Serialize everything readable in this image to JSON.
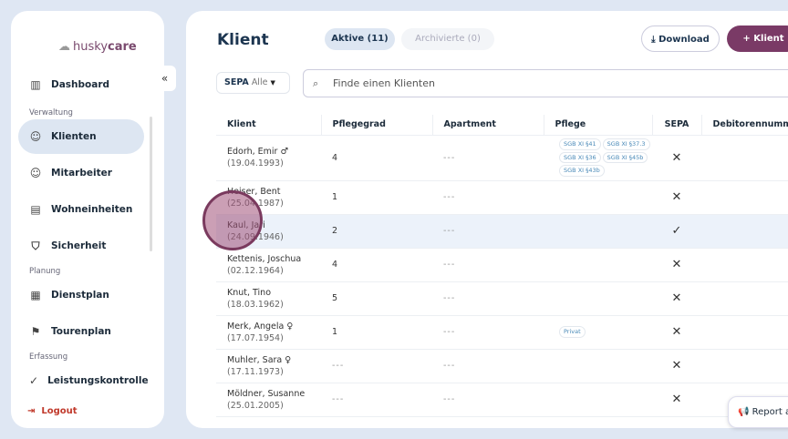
{
  "brand": {
    "name_a": "husky",
    "name_b": "care"
  },
  "sidebar": {
    "collapse": "«",
    "items": [
      {
        "label": "Dashboard",
        "icon": "chart-icon"
      },
      {
        "section": "Verwaltung"
      },
      {
        "label": "Klienten",
        "icon": "face-icon",
        "active": true
      },
      {
        "label": "Mitarbeiter",
        "icon": "face-icon"
      },
      {
        "label": "Wohneinheiten",
        "icon": "building-icon"
      },
      {
        "label": "Sicherheit",
        "icon": "shield-icon"
      },
      {
        "section": "Planung"
      },
      {
        "label": "Dienstplan",
        "icon": "calendar-icon"
      },
      {
        "label": "Tourenplan",
        "icon": "flag-icon"
      },
      {
        "section": "Erfassung"
      },
      {
        "label": "Leistungskontrolle",
        "icon": "check-icon"
      }
    ],
    "logout": "Logout"
  },
  "header": {
    "title": "Klient",
    "tab_active": "Aktive (11)",
    "tab_archived": "Archivierte (0)",
    "download": "Download",
    "add": "Klient"
  },
  "filter": {
    "label": "SEPA",
    "value": "Alle"
  },
  "search": {
    "placeholder": "Finde einen Klienten"
  },
  "table": {
    "columns": [
      "Klient",
      "Pflegegrad",
      "Apartment",
      "Pflege",
      "SEPA",
      "Debitorennummer"
    ],
    "rows": [
      {
        "name": "Edorh, Emir",
        "gender": "♂",
        "dob": "(19.04.1993)",
        "grad": "4",
        "apt": "---",
        "pflege": [
          "SGB XI §41",
          "SGB XI §37.3",
          "SGB XI §36",
          "SGB XI §45b",
          "SGB XI §43b"
        ],
        "sepa": "✕"
      },
      {
        "name": "Heiser, Bent",
        "gender": "",
        "dob": "(25.04.1987)",
        "grad": "1",
        "apt": "---",
        "pflege": [],
        "sepa": "✕"
      },
      {
        "name": "Kaul, Jari",
        "gender": "",
        "dob": "(24.09.1946)",
        "grad": "2",
        "apt": "---",
        "pflege": [],
        "sepa": "✓"
      },
      {
        "name": "Kettenis, Joschua",
        "gender": "",
        "dob": "(02.12.1964)",
        "grad": "4",
        "apt": "---",
        "pflege": [],
        "sepa": "✕"
      },
      {
        "name": "Knut, Tino",
        "gender": "",
        "dob": "(18.03.1962)",
        "grad": "5",
        "apt": "---",
        "pflege": [],
        "sepa": "✕"
      },
      {
        "name": "Merk, Angela",
        "gender": "♀",
        "dob": "(17.07.1954)",
        "grad": "1",
        "apt": "---",
        "pflege": [
          "Privat"
        ],
        "sepa": "✕"
      },
      {
        "name": "Muhler, Sara",
        "gender": "♀",
        "dob": "(17.11.1973)",
        "grad": "---",
        "apt": "---",
        "pflege": [],
        "sepa": "✕"
      },
      {
        "name": "Möldner, Susanne",
        "gender": "",
        "dob": "(25.01.2005)",
        "grad": "---",
        "apt": "---",
        "pflege": [],
        "sepa": "✕"
      }
    ]
  },
  "report": "Report a"
}
